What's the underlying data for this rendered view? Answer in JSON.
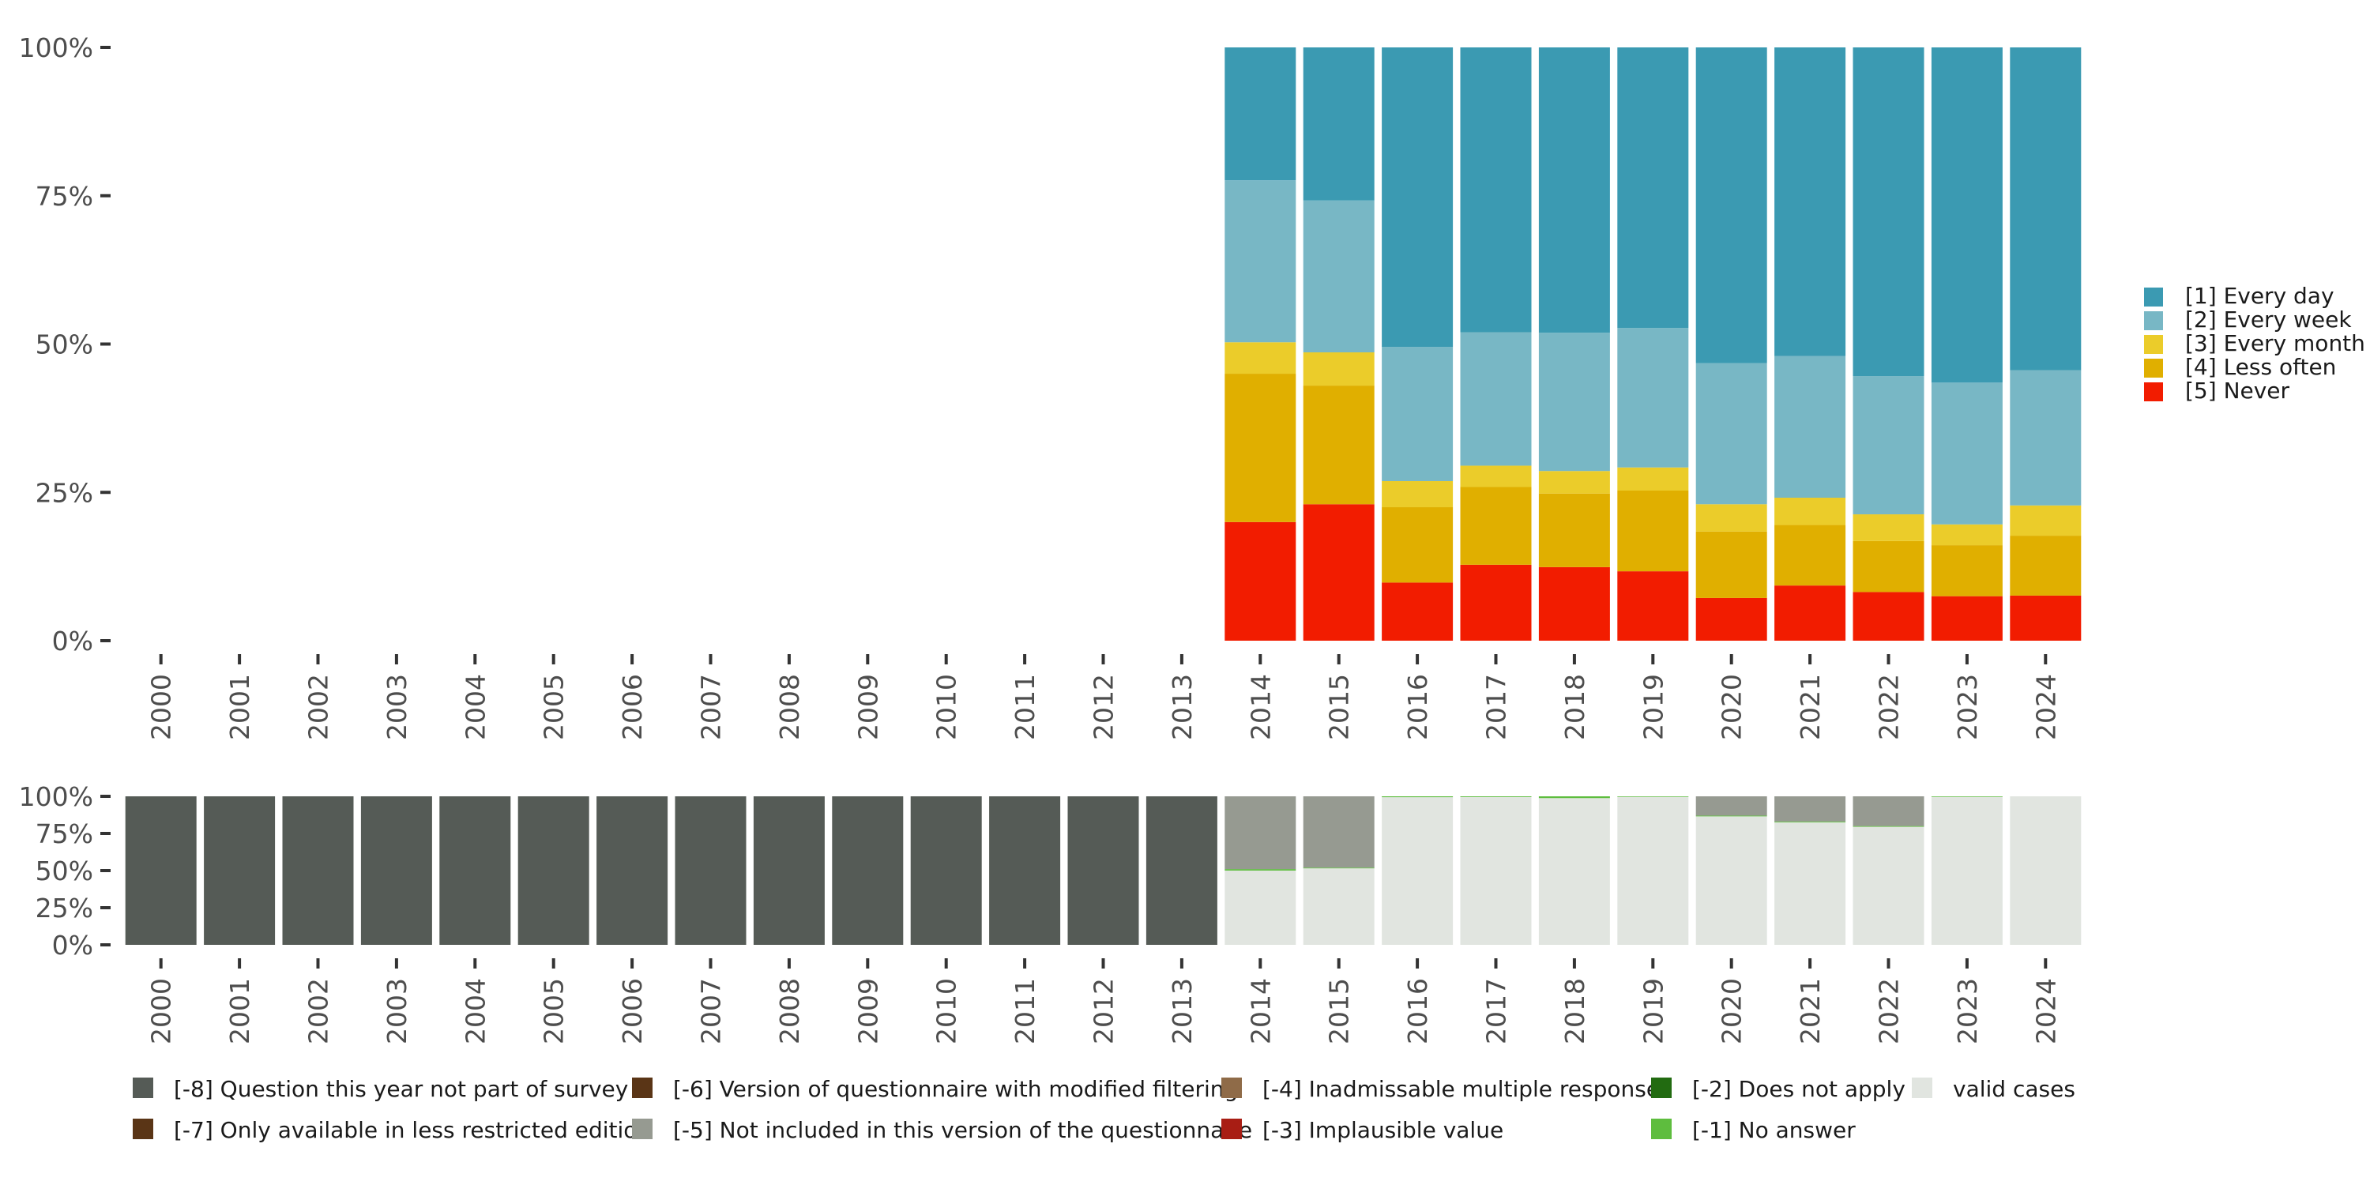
{
  "chart_data": [
    {
      "type": "bar",
      "stacked": true,
      "categories": [
        "2000",
        "2001",
        "2002",
        "2003",
        "2004",
        "2005",
        "2006",
        "2007",
        "2008",
        "2009",
        "2010",
        "2011",
        "2012",
        "2013",
        "2014",
        "2015",
        "2016",
        "2017",
        "2018",
        "2019",
        "2020",
        "2021",
        "2022",
        "2023",
        "2024"
      ],
      "ylim": [
        0,
        100
      ],
      "yticks": [
        "0%",
        "25%",
        "50%",
        "75%",
        "100%"
      ],
      "ytick_values": [
        0,
        25,
        50,
        75,
        100
      ],
      "legend_position": "right",
      "series": [
        {
          "name": "[5] Never",
          "color": "#f21c00",
          "values": [
            0,
            0,
            0,
            0,
            0,
            0,
            0,
            0,
            0,
            0,
            0,
            0,
            0,
            0,
            20,
            23,
            9.8,
            12.8,
            12.4,
            11.7,
            7.2,
            9.3,
            8.2,
            7.5,
            7.6
          ]
        },
        {
          "name": "[4] Less often",
          "color": "#e0af00",
          "values": [
            0,
            0,
            0,
            0,
            0,
            0,
            0,
            0,
            0,
            0,
            0,
            0,
            0,
            0,
            25,
            20,
            12.7,
            13.1,
            12.4,
            13.6,
            11.2,
            10.2,
            8.6,
            8.6,
            10.1
          ]
        },
        {
          "name": "[3] Every month",
          "color": "#ebcc2a",
          "values": [
            0,
            0,
            0,
            0,
            0,
            0,
            0,
            0,
            0,
            0,
            0,
            0,
            0,
            0,
            5.3,
            5.6,
            4.4,
            3.6,
            3.8,
            3.9,
            4.6,
            4.6,
            4.5,
            3.5,
            5.1
          ]
        },
        {
          "name": "[2] Every week",
          "color": "#78b7c5",
          "values": [
            0,
            0,
            0,
            0,
            0,
            0,
            0,
            0,
            0,
            0,
            0,
            0,
            0,
            0,
            27.3,
            25.6,
            22.6,
            22.5,
            23.3,
            23.5,
            23.8,
            23.9,
            23.3,
            23.9,
            22.8
          ]
        },
        {
          "name": "[1] Every day",
          "color": "#3b9ab2",
          "values": [
            0,
            0,
            0,
            0,
            0,
            0,
            0,
            0,
            0,
            0,
            0,
            0,
            0,
            0,
            22.4,
            25.8,
            50.5,
            48,
            48.1,
            47.3,
            53.2,
            52,
            55.4,
            56.5,
            54.4
          ]
        }
      ],
      "legend": [
        "[1] Every day",
        "[2] Every week",
        "[3] Every month",
        "[4] Less often",
        "[5] Never"
      ]
    },
    {
      "type": "bar",
      "stacked": true,
      "categories": [
        "2000",
        "2001",
        "2002",
        "2003",
        "2004",
        "2005",
        "2006",
        "2007",
        "2008",
        "2009",
        "2010",
        "2011",
        "2012",
        "2013",
        "2014",
        "2015",
        "2016",
        "2017",
        "2018",
        "2019",
        "2020",
        "2021",
        "2022",
        "2023",
        "2024"
      ],
      "ylim": [
        0,
        100
      ],
      "yticks": [
        "0%",
        "25%",
        "50%",
        "75%",
        "100%"
      ],
      "ytick_values": [
        0,
        25,
        50,
        75,
        100
      ],
      "legend_position": "bottom",
      "series": [
        {
          "name": "valid cases",
          "color": "#e1e5e0",
          "values": [
            0,
            0,
            0,
            0,
            0,
            0,
            0,
            0,
            0,
            0,
            0,
            0,
            0,
            0,
            50,
            51.5,
            99.4,
            99.5,
            98.8,
            99.6,
            86.5,
            82.5,
            79.5,
            99.6,
            100
          ]
        },
        {
          "name": "[-1] No answer",
          "color": "#5ebd3e",
          "values": [
            0,
            0,
            0,
            0,
            0,
            0,
            0,
            0,
            0,
            0,
            0,
            0,
            0,
            0,
            1,
            0.5,
            0.6,
            0.5,
            1.2,
            0.4,
            0.5,
            0.5,
            0.5,
            0.4,
            0
          ]
        },
        {
          "name": "[-5] Not included in this version of the questionnaire",
          "color": "#969a91",
          "values": [
            0,
            0,
            0,
            0,
            0,
            0,
            0,
            0,
            0,
            0,
            0,
            0,
            0,
            0,
            49,
            48,
            0,
            0,
            0,
            0,
            13,
            17,
            20,
            0,
            0
          ]
        },
        {
          "name": "[-8] Question this year not part of survey",
          "color": "#555b56",
          "values": [
            100,
            100,
            100,
            100,
            100,
            100,
            100,
            100,
            100,
            100,
            100,
            100,
            100,
            100,
            0,
            0,
            0,
            0,
            0,
            0,
            0,
            0,
            0,
            0,
            0
          ]
        }
      ],
      "legend": [
        {
          "label": "[-8] Question this year not part of survey",
          "color": "#555b56"
        },
        {
          "label": "[-7] Only available in less restricted edition",
          "color": "#5a3516"
        },
        {
          "label": "[-6] Version of questionnaire with modified filtering",
          "color": "#5a3516"
        },
        {
          "label": "[-5] Not included in this version of the questionnaire",
          "color": "#969a91"
        },
        {
          "label": "[-4] Inadmissable multiple response",
          "color": "#8f6b48"
        },
        {
          "label": "[-3] Implausible value",
          "color": "#a81d14"
        },
        {
          "label": "[-2] Does not apply",
          "color": "#226b11"
        },
        {
          "label": "[-1] No answer",
          "color": "#5ebd3e"
        },
        {
          "label": "valid cases",
          "color": "#e1e5e0"
        }
      ]
    }
  ]
}
